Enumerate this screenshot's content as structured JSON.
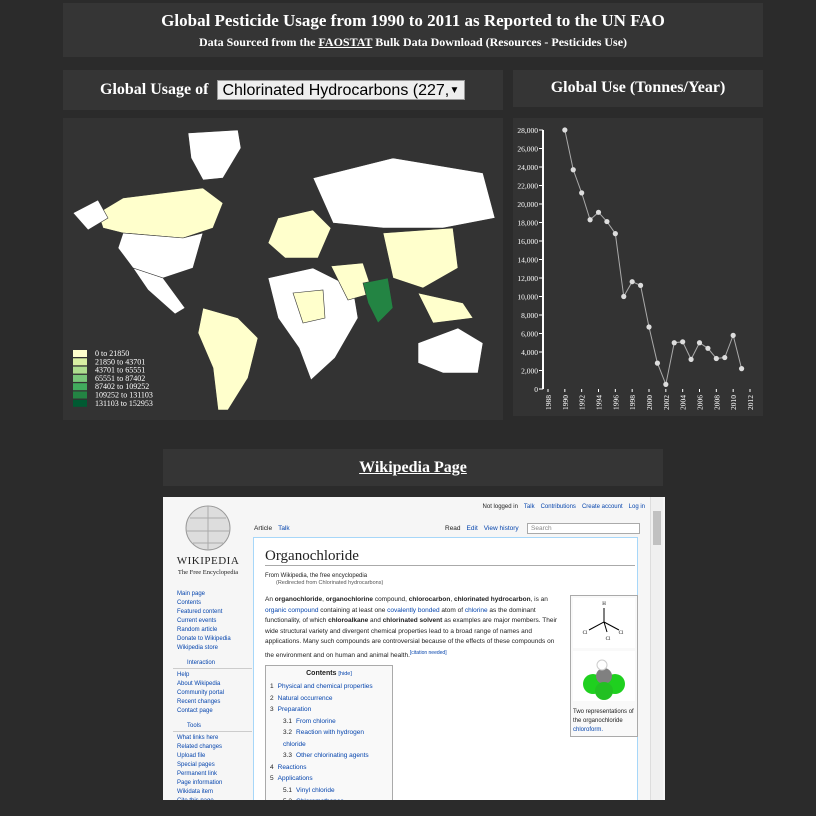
{
  "header": {
    "title": "Global Pesticide Usage from 1990 to 2011 as Reported to the UN FAO",
    "subtitle_before": "Data Sourced from the",
    "subtitle_link": "FAOSTAT",
    "subtitle_after": "Bulk Data Download (Resources - Pesticides Use)"
  },
  "selector": {
    "label": "Global Usage of",
    "selected": "Chlorinated Hydrocarbons (227,"
  },
  "map_legend": [
    {
      "label": "0 to 21850",
      "color": "#ffffcc"
    },
    {
      "label": "21850 to 43701",
      "color": "#d9f0a3"
    },
    {
      "label": "43701 to 65551",
      "color": "#addd8e"
    },
    {
      "label": "65551 to 87402",
      "color": "#78c679"
    },
    {
      "label": "87402 to 109252",
      "color": "#41ab5d"
    },
    {
      "label": "109252 to 131103",
      "color": "#238443"
    },
    {
      "label": "131103 to 152953",
      "color": "#005a32"
    }
  ],
  "chart_data": {
    "type": "line",
    "title": "Global Use (Tonnes/Year)",
    "x": [
      1990,
      1991,
      1992,
      1993,
      1994,
      1995,
      1996,
      1997,
      1998,
      1999,
      2000,
      2001,
      2002,
      2003,
      2004,
      2005,
      2006,
      2007,
      2008,
      2009,
      2010,
      2011
    ],
    "series": [
      {
        "name": "Global Use",
        "color": "#aaaaaa",
        "values": [
          28000,
          23700,
          21200,
          18300,
          19100,
          18100,
          16800,
          10000,
          11600,
          11200,
          6700,
          2800,
          500,
          5000,
          5100,
          3200,
          5000,
          4400,
          3300,
          3400,
          5800,
          2200
        ]
      }
    ],
    "xlim": [
      1988,
      2012
    ],
    "xticks": [
      1988,
      1990,
      1992,
      1994,
      1996,
      1998,
      2000,
      2002,
      2004,
      2006,
      2008,
      2010,
      2012
    ],
    "ylim": [
      0,
      28000
    ],
    "yticks": [
      0,
      {
        "value": 2000,
        "label": "2,000"
      },
      {
        "value": 4000,
        "label": "4,000"
      },
      {
        "value": 6000,
        "label": "6,000"
      },
      {
        "value": 8000,
        "label": "8,000"
      },
      {
        "value": 10000,
        "label": "10,000"
      },
      {
        "value": 12000,
        "label": "12,000"
      },
      {
        "value": 14000,
        "label": "14,000"
      },
      {
        "value": 16000,
        "label": "16,000"
      },
      {
        "value": 18000,
        "label": "18,000"
      },
      {
        "value": 20000,
        "label": "20,000"
      },
      {
        "value": 22000,
        "label": "22,000"
      },
      {
        "value": 24000,
        "label": "24,000"
      },
      {
        "value": 26000,
        "label": "26,000"
      },
      {
        "value": 28000,
        "label": "28,000"
      }
    ]
  },
  "wiki_heading": "Wikipedia Page",
  "wikipedia": {
    "personal": [
      "Not logged in",
      "Talk",
      "Contributions",
      "Create account",
      "Log in"
    ],
    "left_tabs": [
      "Article",
      "Talk"
    ],
    "right_tabs": [
      "Read",
      "Edit",
      "View history"
    ],
    "search": "Search",
    "logo_name": "Wikipedia",
    "logo_tagline": "The Free Encyclopedia",
    "nav": [
      "Main page",
      "Contents",
      "Featured content",
      "Current events",
      "Random article",
      "Donate to Wikipedia",
      "Wikipedia store"
    ],
    "interaction_title": "Interaction",
    "interaction": [
      "Help",
      "About Wikipedia",
      "Community portal",
      "Recent changes",
      "Contact page"
    ],
    "tools_title": "Tools",
    "tools": [
      "What links here",
      "Related changes",
      "Upload file",
      "Special pages",
      "Permanent link",
      "Page information",
      "Wikidata item",
      "Cite this page"
    ],
    "article_title": "Organochloride",
    "from": "From Wikipedia, the free encyclopedia",
    "redirect": "(Redirected from Chlorinated hydrocarbons)",
    "paragraph": [
      {
        "text": "An "
      },
      {
        "text": "organochloride",
        "style": "bold"
      },
      {
        "text": ", "
      },
      {
        "text": "organochlorine",
        "style": "bold"
      },
      {
        "text": " compound, "
      },
      {
        "text": "chlorocarbon",
        "style": "bold"
      },
      {
        "text": ", "
      },
      {
        "text": "chlorinated hydrocarbon",
        "style": "bold"
      },
      {
        "text": ", is an "
      },
      {
        "text": "organic compound",
        "style": "link"
      },
      {
        "text": " containing at least one "
      },
      {
        "text": "covalently bonded",
        "style": "link"
      },
      {
        "text": " atom of "
      },
      {
        "text": "chlorine",
        "style": "link"
      },
      {
        "text": " as the dominant functionality, of which "
      },
      {
        "text": "chloroalkane",
        "style": "bold"
      },
      {
        "text": " and "
      },
      {
        "text": "chlorinated solvent",
        "style": "bold"
      },
      {
        "text": " as examples are major members. Their wide structural variety and divergent chemical properties lead to a broad range of names and applications. Many such compounds are controversial because of the effects of these compounds on the environment and on human and animal health."
      },
      {
        "text": "[citation needed]",
        "style": "sup"
      }
    ],
    "contents_title": "Contents",
    "contents_hide": "[hide]",
    "contents": [
      {
        "number": "1",
        "text": "Physical and chemical properties"
      },
      {
        "number": "2",
        "text": "Natural occurrence"
      },
      {
        "number": "3",
        "text": "Preparation"
      },
      {
        "number": "3.1",
        "text": "From chlorine"
      },
      {
        "number": "3.2",
        "text": "Reaction with hydrogen chloride"
      },
      {
        "number": "3.3",
        "text": "Other chlorinating agents"
      },
      {
        "number": "4",
        "text": "Reactions"
      },
      {
        "number": "5",
        "text": "Applications"
      },
      {
        "number": "5.1",
        "text": "Vinyl chloride"
      },
      {
        "number": "5.2",
        "text": "Chloromethanes"
      }
    ],
    "atoms": [
      "H",
      "Cl",
      "Cl",
      "Cl"
    ],
    "caption_before": "Two representations of the organochloride",
    "caption_link": "chloroform."
  }
}
